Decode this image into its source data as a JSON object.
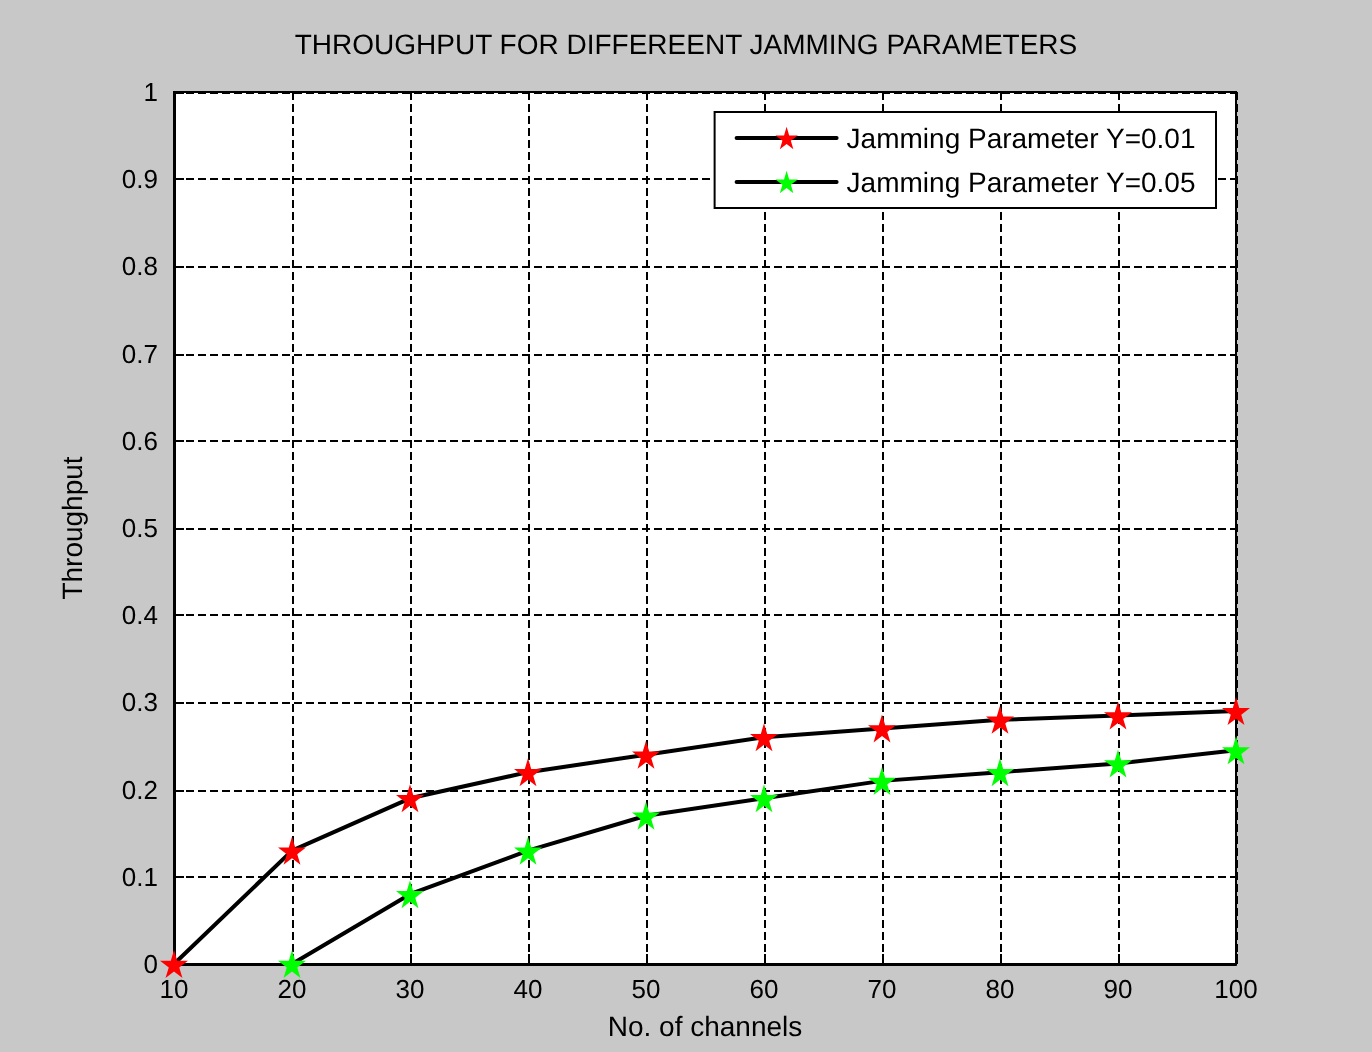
{
  "chart_data": {
    "type": "line",
    "title": "THROUGHPUT FOR DIFFEREENT JAMMING PARAMETERS",
    "xlabel": "No. of channels",
    "ylabel": "Throughput",
    "x": [
      10,
      20,
      30,
      40,
      50,
      60,
      70,
      80,
      90,
      100
    ],
    "series": [
      {
        "name": "Jamming Parameter Y=0.01",
        "color": "#ff0000",
        "values": [
          0,
          0.13,
          0.19,
          0.22,
          0.24,
          0.26,
          0.27,
          0.28,
          0.285,
          0.29
        ]
      },
      {
        "name": "Jamming Parameter Y=0.05",
        "color": "#00ff00",
        "values": [
          null,
          0,
          0.08,
          0.13,
          0.17,
          0.19,
          0.21,
          0.22,
          0.23,
          0.245
        ]
      }
    ],
    "xlim": [
      10,
      100
    ],
    "xticks": [
      10,
      20,
      30,
      40,
      50,
      60,
      70,
      80,
      90,
      100
    ],
    "ylim": [
      0,
      1
    ],
    "yticks": [
      0,
      0.1,
      0.2,
      0.3,
      0.4,
      0.5,
      0.6,
      0.7,
      0.8,
      0.9,
      1
    ],
    "grid": true,
    "legend": "top right",
    "marker": "star",
    "line_style": "solid"
  }
}
